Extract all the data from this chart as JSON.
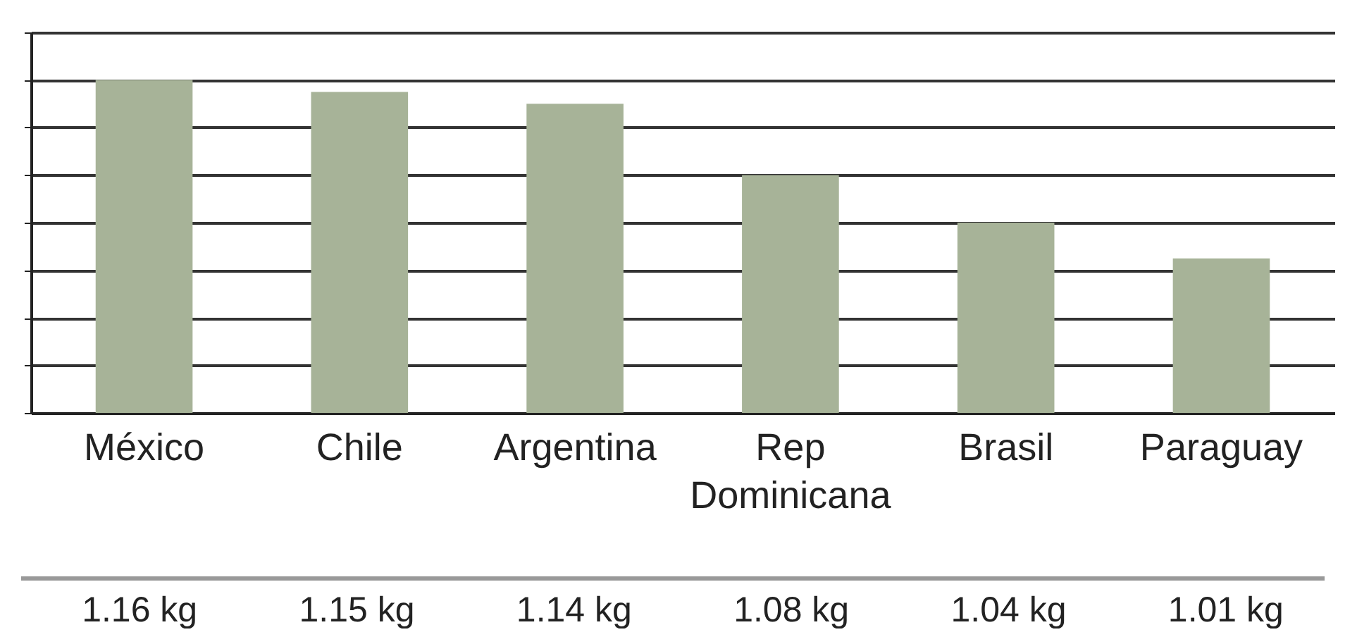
{
  "chart_data": {
    "type": "bar",
    "categories": [
      "México",
      "Chile",
      "Argentina",
      "Rep Dominicana",
      "Brasil",
      "Paraguay"
    ],
    "values": [
      1.16,
      1.15,
      1.14,
      1.08,
      1.04,
      1.01
    ],
    "value_labels": [
      "1.16 kg",
      "1.15 kg",
      "1.14 kg",
      "1.08 kg",
      "1.04 kg",
      "1.01 kg"
    ],
    "color": "#a7b398",
    "ylim": [
      0.88,
      1.2
    ],
    "yticks": [
      {
        "value": 0.88,
        "label": null
      },
      {
        "value": 0.92,
        "label": null
      },
      {
        "value": 0.96,
        "label": null
      },
      {
        "value": 1.0,
        "label": null
      },
      {
        "value": 1.04,
        "label": null
      },
      {
        "value": 1.08,
        "label": null
      },
      {
        "value": 1.12,
        "label": null
      },
      {
        "value": 1.16,
        "label": null
      },
      {
        "value": 1.2,
        "label": null
      }
    ],
    "grid": true
  }
}
